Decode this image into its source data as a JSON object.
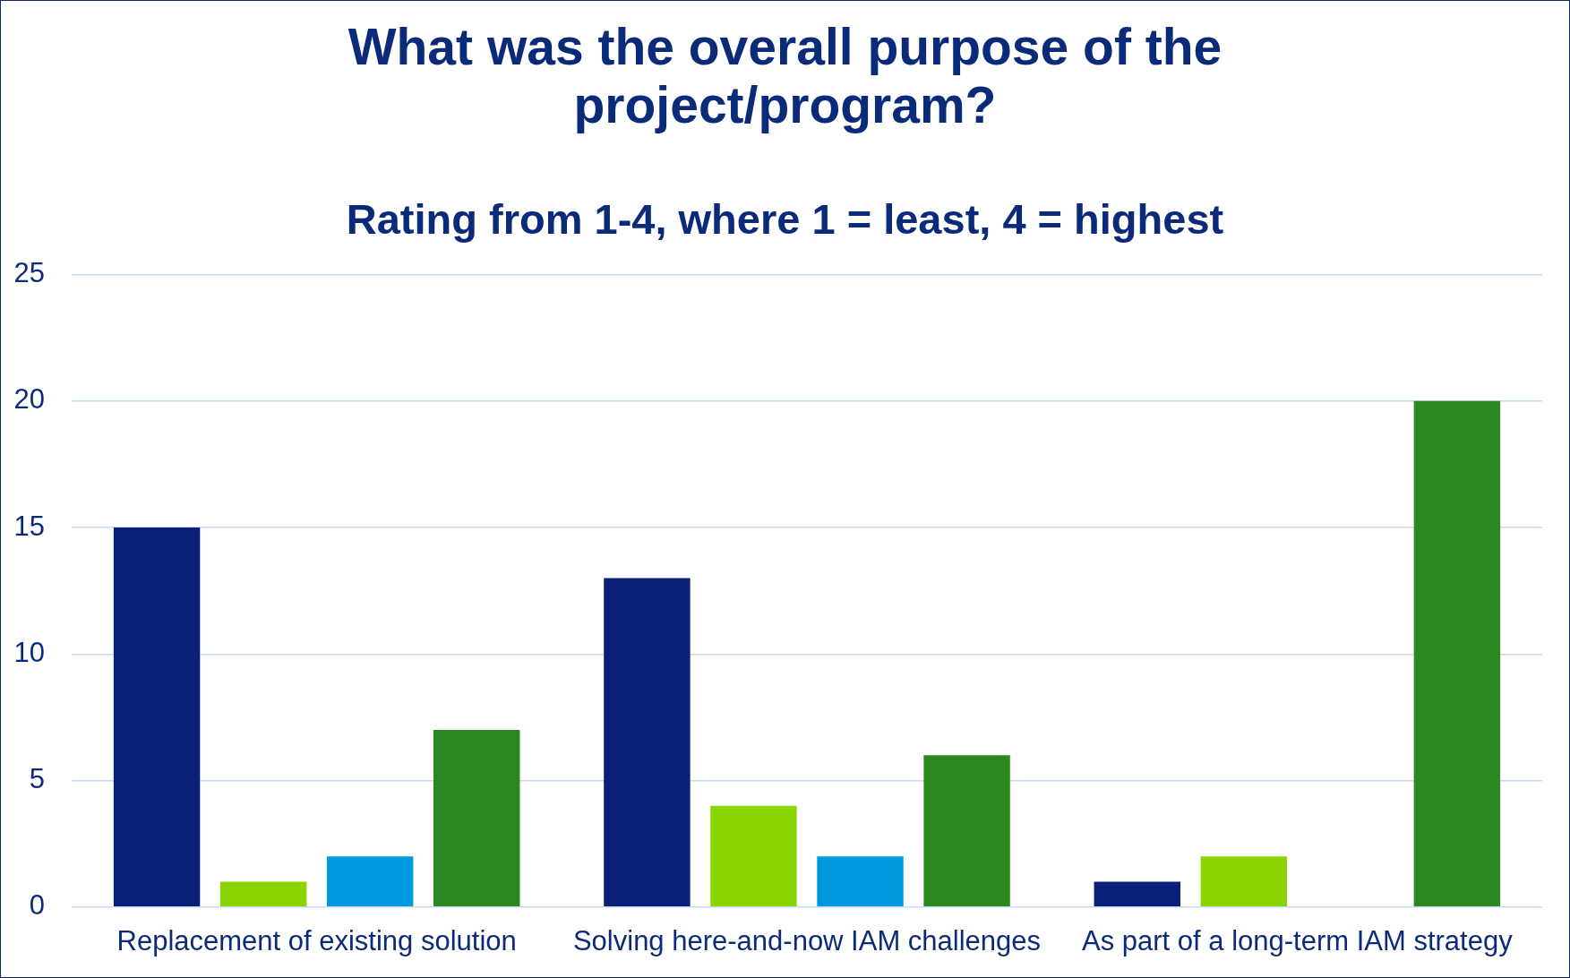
{
  "chart_data": {
    "type": "bar",
    "title": "What was the overall purpose of the project/program?",
    "subtitle": "Rating from 1-4, where 1 = least, 4 = highest",
    "categories": [
      "Replacement of existing solution",
      "Solving here-and-now IAM challenges",
      "As part of a long-term IAM strategy"
    ],
    "series": [
      {
        "color": "#0a1f78",
        "values": [
          15,
          13,
          1
        ]
      },
      {
        "color": "#8ad400",
        "values": [
          1,
          4,
          2
        ]
      },
      {
        "color": "#0099dd",
        "values": [
          2,
          2,
          0
        ]
      },
      {
        "color": "#2a881e",
        "values": [
          7,
          6,
          20
        ]
      }
    ],
    "ylim": [
      0,
      25
    ],
    "yticks": [
      0,
      5,
      10,
      15,
      20,
      25
    ],
    "grid": "y"
  }
}
